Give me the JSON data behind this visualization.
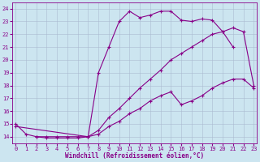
{
  "xlabel": "Windchill (Refroidissement éolien,°C)",
  "xlim": [
    -0.3,
    23.3
  ],
  "ylim": [
    13.5,
    24.5
  ],
  "xticks": [
    0,
    1,
    2,
    3,
    4,
    5,
    6,
    7,
    8,
    9,
    10,
    11,
    12,
    13,
    14,
    15,
    16,
    17,
    18,
    19,
    20,
    21,
    22,
    23
  ],
  "yticks": [
    14,
    15,
    16,
    17,
    18,
    19,
    20,
    21,
    22,
    23,
    24
  ],
  "background_color": "#cce5f0",
  "grid_color": "#aabbd0",
  "line_color": "#880088",
  "line1_x": [
    0,
    1,
    2,
    3,
    4,
    5,
    6,
    7,
    8,
    9,
    10,
    11,
    12,
    13,
    14,
    15,
    16,
    17,
    18,
    19,
    20,
    21
  ],
  "line1_y": [
    15.0,
    14.2,
    14.0,
    13.9,
    13.9,
    13.9,
    13.9,
    14.0,
    19.0,
    21.0,
    23.0,
    23.8,
    23.3,
    23.5,
    23.8,
    23.8,
    23.1,
    23.0,
    23.2,
    23.1,
    22.2,
    21.0
  ],
  "line2_x": [
    2,
    3,
    4,
    5,
    6,
    7,
    8,
    9,
    10,
    11,
    12,
    13,
    14,
    15,
    16,
    17,
    18,
    19,
    20,
    21,
    22,
    23
  ],
  "line2_y": [
    14.0,
    14.0,
    14.0,
    14.0,
    14.0,
    14.0,
    14.5,
    15.5,
    16.2,
    17.0,
    17.8,
    18.5,
    19.2,
    20.0,
    20.5,
    21.0,
    21.5,
    22.0,
    22.2,
    22.5,
    22.2,
    18.0
  ],
  "line3_x": [
    0,
    7,
    8,
    9,
    10,
    11,
    12,
    13,
    14,
    15,
    16,
    17,
    18,
    19,
    20,
    21,
    22,
    23
  ],
  "line3_y": [
    14.8,
    14.0,
    14.2,
    14.8,
    15.2,
    15.8,
    16.2,
    16.8,
    17.2,
    17.5,
    16.5,
    16.8,
    17.2,
    17.8,
    18.2,
    18.5,
    18.5,
    17.8
  ]
}
